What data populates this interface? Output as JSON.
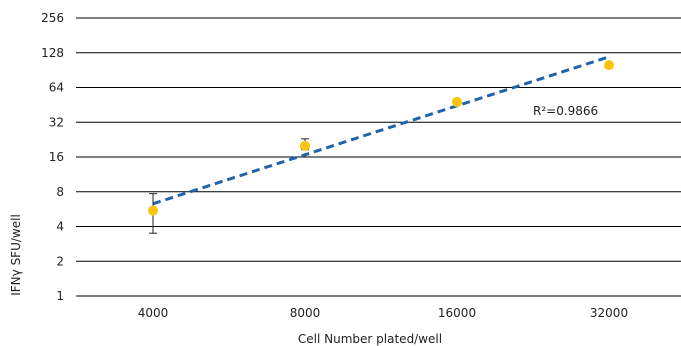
{
  "chart_data": {
    "type": "scatter",
    "title": "",
    "xlabel": "Cell Number plated/well",
    "ylabel": "IFNγ SFU/well",
    "x_scale": "log2",
    "y_scale": "log2",
    "x_ticks": [
      4000,
      8000,
      16000,
      32000
    ],
    "x_tick_labels": [
      "4000",
      "8000",
      "16000",
      "32000"
    ],
    "y_ticks": [
      1,
      2,
      4,
      8,
      16,
      32,
      64,
      128,
      256
    ],
    "y_tick_labels": [
      "1",
      "2",
      "4",
      "8",
      "16",
      "32",
      "64",
      "128",
      "256"
    ],
    "ylim": [
      1,
      256
    ],
    "grid": "horizontal",
    "series": [
      {
        "x": [
          4000,
          8000,
          16000,
          32000
        ],
        "y": [
          5.5,
          20,
          48,
          100
        ],
        "err_low": [
          3.5,
          18.5,
          null,
          null
        ],
        "err_high": [
          7.7,
          23,
          null,
          null
        ],
        "color": "#FFC20E"
      }
    ],
    "trendline": {
      "x": [
        4000,
        32000
      ],
      "y": [
        6.3,
        118
      ],
      "color": "#1E64AA",
      "style": "dashed"
    },
    "annotation": "R²=0.9866"
  }
}
